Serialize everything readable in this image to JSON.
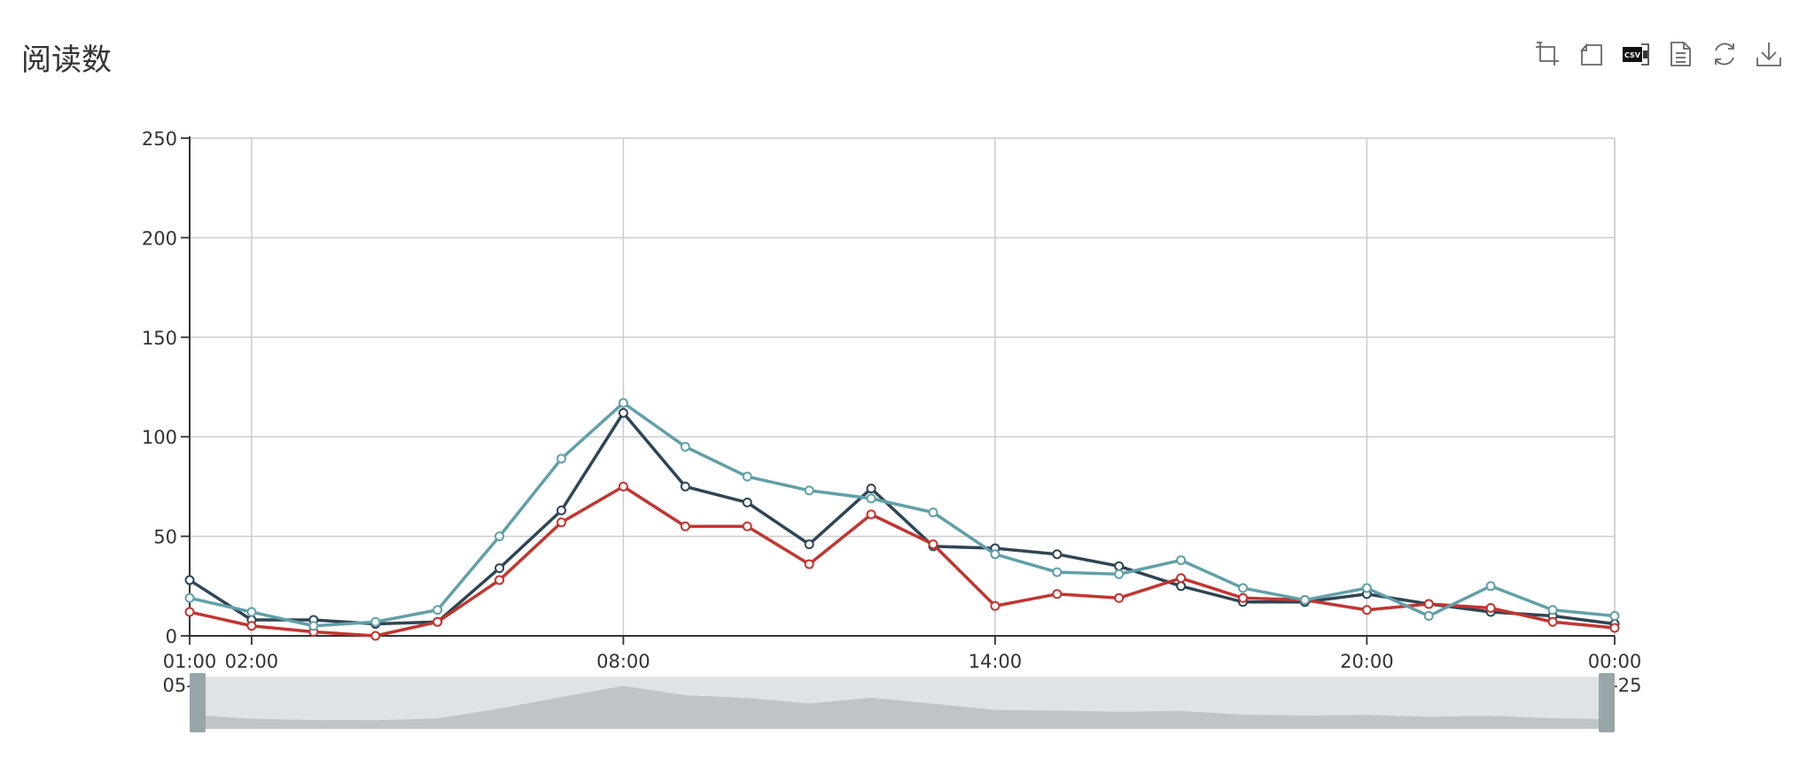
{
  "header": {
    "title": "阅读数"
  },
  "toolbox": {
    "items": [
      {
        "name": "zoom-icon"
      },
      {
        "name": "zoom-reset-icon"
      },
      {
        "name": "csv-export-icon"
      },
      {
        "name": "data-view-icon"
      },
      {
        "name": "restore-icon"
      },
      {
        "name": "download-icon"
      }
    ]
  },
  "chart_data": {
    "type": "line",
    "title": "阅读数",
    "xlabel": "",
    "ylabel": "",
    "ylim": [
      0,
      250
    ],
    "y_ticks": [
      "0",
      "50",
      "100",
      "150",
      "200",
      "250"
    ],
    "x_tick_labels": [
      {
        "time": "01:00",
        "date": "05-24",
        "index": 0
      },
      {
        "time": "02:00",
        "date": "05-24",
        "index": 1
      },
      {
        "time": "08:00",
        "date": "05-24",
        "index": 7
      },
      {
        "time": "14:00",
        "date": "05-24",
        "index": 13
      },
      {
        "time": "20:00",
        "date": "05-24",
        "index": 19
      },
      {
        "time": "00:00",
        "date": "05-25",
        "index": 23
      }
    ],
    "x": [
      "01:00",
      "02:00",
      "03:00",
      "04:00",
      "05:00",
      "06:00",
      "07:00",
      "08:00",
      "09:00",
      "10:00",
      "11:00",
      "12:00",
      "13:00",
      "14:00",
      "15:00",
      "16:00",
      "17:00",
      "18:00",
      "19:00",
      "20:00",
      "21:00",
      "22:00",
      "23:00",
      "00:00"
    ],
    "grid": true,
    "series": [
      {
        "color": "#2f4554",
        "values": [
          28,
          8,
          8,
          6,
          7,
          34,
          63,
          112,
          75,
          67,
          46,
          74,
          45,
          44,
          41,
          35,
          25,
          17,
          17,
          21,
          16,
          12,
          10,
          6
        ]
      },
      {
        "color": "#c23531",
        "values": [
          12,
          5,
          2,
          0,
          7,
          28,
          57,
          75,
          55,
          55,
          36,
          61,
          46,
          15,
          21,
          19,
          29,
          19,
          18,
          13,
          16,
          14,
          7,
          4
        ]
      },
      {
        "color": "#61a0a8",
        "values": [
          19,
          12,
          5,
          7,
          13,
          50,
          89,
          117,
          95,
          80,
          73,
          69,
          62,
          41,
          32,
          31,
          38,
          24,
          18,
          24,
          10,
          25,
          13,
          10
        ]
      }
    ],
    "data_zoom": {
      "start": 0,
      "end": 100
    }
  }
}
